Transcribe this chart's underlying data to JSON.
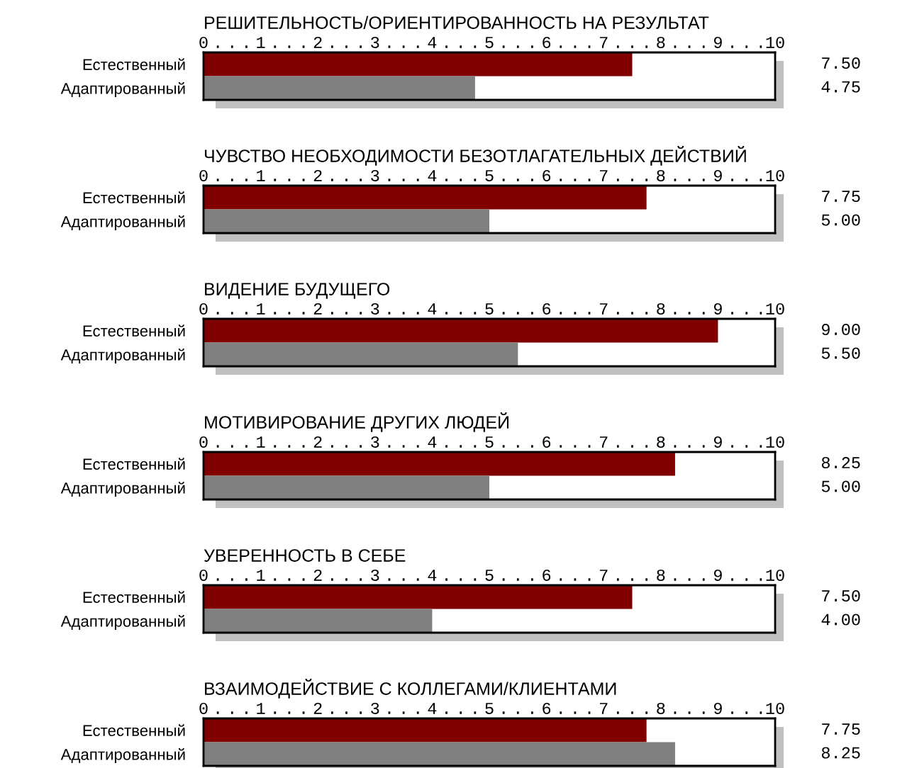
{
  "chart_data": [
    {
      "type": "bar",
      "orientation": "horizontal",
      "title": "РЕШИТЕЛЬНОСТЬ/ОРИЕНТИРОВАННОСТЬ НА РЕЗУЛЬТАТ",
      "categories": [
        "Естественный",
        "Адаптированный"
      ],
      "values": [
        7.5,
        4.75
      ],
      "colors": [
        "#800000",
        "#808080"
      ],
      "value_labels": [
        "7.50",
        "4.75"
      ],
      "xlim": [
        0,
        10
      ],
      "xticks": [
        0,
        {
          "value": 0.25,
          "label": "."
        },
        {
          "value": 0.5,
          "label": "."
        },
        {
          "value": 0.75,
          "label": "."
        },
        1,
        {
          "value": 1.25,
          "label": "."
        },
        {
          "value": 1.5,
          "label": "."
        },
        {
          "value": 1.75,
          "label": "."
        },
        2,
        {
          "value": 2.25,
          "label": "."
        },
        {
          "value": 2.5,
          "label": "."
        },
        {
          "value": 2.75,
          "label": "."
        },
        3,
        {
          "value": 3.25,
          "label": "."
        },
        {
          "value": 3.5,
          "label": "."
        },
        {
          "value": 3.75,
          "label": "."
        },
        4,
        {
          "value": 4.25,
          "label": "."
        },
        {
          "value": 4.5,
          "label": "."
        },
        {
          "value": 4.75,
          "label": "."
        },
        5,
        {
          "value": 5.25,
          "label": "."
        },
        {
          "value": 5.5,
          "label": "."
        },
        {
          "value": 5.75,
          "label": "."
        },
        6,
        {
          "value": 6.25,
          "label": "."
        },
        {
          "value": 6.5,
          "label": "."
        },
        {
          "value": 6.75,
          "label": "."
        },
        7,
        {
          "value": 7.25,
          "label": "."
        },
        {
          "value": 7.5,
          "label": "."
        },
        {
          "value": 7.75,
          "label": "."
        },
        8,
        {
          "value": 8.25,
          "label": "."
        },
        {
          "value": 8.5,
          "label": "."
        },
        {
          "value": 8.75,
          "label": "."
        },
        9,
        {
          "value": 9.25,
          "label": "."
        },
        {
          "value": 9.5,
          "label": "."
        },
        {
          "value": 9.75,
          "label": "."
        },
        10
      ]
    },
    {
      "type": "bar",
      "orientation": "horizontal",
      "title": "ЧУВСТВО НЕОБХОДИМОСТИ БЕЗОТЛАГАТЕЛЬНЫХ ДЕЙСТВИЙ",
      "categories": [
        "Естественный",
        "Адаптированный"
      ],
      "values": [
        7.75,
        5.0
      ],
      "colors": [
        "#800000",
        "#808080"
      ],
      "value_labels": [
        "7.75",
        "5.00"
      ],
      "xlim": [
        0,
        10
      ],
      "xticks": [
        0,
        {
          "value": 0.25,
          "label": "."
        },
        {
          "value": 0.5,
          "label": "."
        },
        {
          "value": 0.75,
          "label": "."
        },
        1,
        {
          "value": 1.25,
          "label": "."
        },
        {
          "value": 1.5,
          "label": "."
        },
        {
          "value": 1.75,
          "label": "."
        },
        2,
        {
          "value": 2.25,
          "label": "."
        },
        {
          "value": 2.5,
          "label": "."
        },
        {
          "value": 2.75,
          "label": "."
        },
        3,
        {
          "value": 3.25,
          "label": "."
        },
        {
          "value": 3.5,
          "label": "."
        },
        {
          "value": 3.75,
          "label": "."
        },
        4,
        {
          "value": 4.25,
          "label": "."
        },
        {
          "value": 4.5,
          "label": "."
        },
        {
          "value": 4.75,
          "label": "."
        },
        5,
        {
          "value": 5.25,
          "label": "."
        },
        {
          "value": 5.5,
          "label": "."
        },
        {
          "value": 5.75,
          "label": "."
        },
        6,
        {
          "value": 6.25,
          "label": "."
        },
        {
          "value": 6.5,
          "label": "."
        },
        {
          "value": 6.75,
          "label": "."
        },
        7,
        {
          "value": 7.25,
          "label": "."
        },
        {
          "value": 7.5,
          "label": "."
        },
        {
          "value": 7.75,
          "label": "."
        },
        8,
        {
          "value": 8.25,
          "label": "."
        },
        {
          "value": 8.5,
          "label": "."
        },
        {
          "value": 8.75,
          "label": "."
        },
        9,
        {
          "value": 9.25,
          "label": "."
        },
        {
          "value": 9.5,
          "label": "."
        },
        {
          "value": 9.75,
          "label": "."
        },
        10
      ]
    },
    {
      "type": "bar",
      "orientation": "horizontal",
      "title": "ВИДЕНИЕ БУДУЩЕГО",
      "categories": [
        "Естественный",
        "Адаптированный"
      ],
      "values": [
        9.0,
        5.5
      ],
      "colors": [
        "#800000",
        "#808080"
      ],
      "value_labels": [
        "9.00",
        "5.50"
      ],
      "xlim": [
        0,
        10
      ],
      "xticks": [
        0,
        {
          "value": 0.25,
          "label": "."
        },
        {
          "value": 0.5,
          "label": "."
        },
        {
          "value": 0.75,
          "label": "."
        },
        1,
        {
          "value": 1.25,
          "label": "."
        },
        {
          "value": 1.5,
          "label": "."
        },
        {
          "value": 1.75,
          "label": "."
        },
        2,
        {
          "value": 2.25,
          "label": "."
        },
        {
          "value": 2.5,
          "label": "."
        },
        {
          "value": 2.75,
          "label": "."
        },
        3,
        {
          "value": 3.25,
          "label": "."
        },
        {
          "value": 3.5,
          "label": "."
        },
        {
          "value": 3.75,
          "label": "."
        },
        4,
        {
          "value": 4.25,
          "label": "."
        },
        {
          "value": 4.5,
          "label": "."
        },
        {
          "value": 4.75,
          "label": "."
        },
        5,
        {
          "value": 5.25,
          "label": "."
        },
        {
          "value": 5.5,
          "label": "."
        },
        {
          "value": 5.75,
          "label": "."
        },
        6,
        {
          "value": 6.25,
          "label": "."
        },
        {
          "value": 6.5,
          "label": "."
        },
        {
          "value": 6.75,
          "label": "."
        },
        7,
        {
          "value": 7.25,
          "label": "."
        },
        {
          "value": 7.5,
          "label": "."
        },
        {
          "value": 7.75,
          "label": "."
        },
        8,
        {
          "value": 8.25,
          "label": "."
        },
        {
          "value": 8.5,
          "label": "."
        },
        {
          "value": 8.75,
          "label": "."
        },
        9,
        {
          "value": 9.25,
          "label": "."
        },
        {
          "value": 9.5,
          "label": "."
        },
        {
          "value": 9.75,
          "label": "."
        },
        10
      ]
    },
    {
      "type": "bar",
      "orientation": "horizontal",
      "title": "МОТИВИРОВАНИЕ ДРУГИХ ЛЮДЕЙ",
      "categories": [
        "Естественный",
        "Адаптированный"
      ],
      "values": [
        8.25,
        5.0
      ],
      "colors": [
        "#800000",
        "#808080"
      ],
      "value_labels": [
        "8.25",
        "5.00"
      ],
      "xlim": [
        0,
        10
      ],
      "xticks": [
        0,
        {
          "value": 0.25,
          "label": "."
        },
        {
          "value": 0.5,
          "label": "."
        },
        {
          "value": 0.75,
          "label": "."
        },
        1,
        {
          "value": 1.25,
          "label": "."
        },
        {
          "value": 1.5,
          "label": "."
        },
        {
          "value": 1.75,
          "label": "."
        },
        2,
        {
          "value": 2.25,
          "label": "."
        },
        {
          "value": 2.5,
          "label": "."
        },
        {
          "value": 2.75,
          "label": "."
        },
        3,
        {
          "value": 3.25,
          "label": "."
        },
        {
          "value": 3.5,
          "label": "."
        },
        {
          "value": 3.75,
          "label": "."
        },
        4,
        {
          "value": 4.25,
          "label": "."
        },
        {
          "value": 4.5,
          "label": "."
        },
        {
          "value": 4.75,
          "label": "."
        },
        5,
        {
          "value": 5.25,
          "label": "."
        },
        {
          "value": 5.5,
          "label": "."
        },
        {
          "value": 5.75,
          "label": "."
        },
        6,
        {
          "value": 6.25,
          "label": "."
        },
        {
          "value": 6.5,
          "label": "."
        },
        {
          "value": 6.75,
          "label": "."
        },
        7,
        {
          "value": 7.25,
          "label": "."
        },
        {
          "value": 7.5,
          "label": "."
        },
        {
          "value": 7.75,
          "label": "."
        },
        8,
        {
          "value": 8.25,
          "label": "."
        },
        {
          "value": 8.5,
          "label": "."
        },
        {
          "value": 8.75,
          "label": "."
        },
        9,
        {
          "value": 9.25,
          "label": "."
        },
        {
          "value": 9.5,
          "label": "."
        },
        {
          "value": 9.75,
          "label": "."
        },
        10
      ]
    },
    {
      "type": "bar",
      "orientation": "horizontal",
      "title": "УВЕРЕННОСТЬ В СЕБЕ",
      "categories": [
        "Естественный",
        "Адаптированный"
      ],
      "values": [
        7.5,
        4.0
      ],
      "colors": [
        "#800000",
        "#808080"
      ],
      "value_labels": [
        "7.50",
        "4.00"
      ],
      "xlim": [
        0,
        10
      ],
      "xticks": [
        0,
        {
          "value": 0.25,
          "label": "."
        },
        {
          "value": 0.5,
          "label": "."
        },
        {
          "value": 0.75,
          "label": "."
        },
        1,
        {
          "value": 1.25,
          "label": "."
        },
        {
          "value": 1.5,
          "label": "."
        },
        {
          "value": 1.75,
          "label": "."
        },
        2,
        {
          "value": 2.25,
          "label": "."
        },
        {
          "value": 2.5,
          "label": "."
        },
        {
          "value": 2.75,
          "label": "."
        },
        3,
        {
          "value": 3.25,
          "label": "."
        },
        {
          "value": 3.5,
          "label": "."
        },
        {
          "value": 3.75,
          "label": "."
        },
        4,
        {
          "value": 4.25,
          "label": "."
        },
        {
          "value": 4.5,
          "label": "."
        },
        {
          "value": 4.75,
          "label": "."
        },
        5,
        {
          "value": 5.25,
          "label": "."
        },
        {
          "value": 5.5,
          "label": "."
        },
        {
          "value": 5.75,
          "label": "."
        },
        6,
        {
          "value": 6.25,
          "label": "."
        },
        {
          "value": 6.5,
          "label": "."
        },
        {
          "value": 6.75,
          "label": "."
        },
        7,
        {
          "value": 7.25,
          "label": "."
        },
        {
          "value": 7.5,
          "label": "."
        },
        {
          "value": 7.75,
          "label": "."
        },
        8,
        {
          "value": 8.25,
          "label": "."
        },
        {
          "value": 8.5,
          "label": "."
        },
        {
          "value": 8.75,
          "label": "."
        },
        9,
        {
          "value": 9.25,
          "label": "."
        },
        {
          "value": 9.5,
          "label": "."
        },
        {
          "value": 9.75,
          "label": "."
        },
        10
      ]
    },
    {
      "type": "bar",
      "orientation": "horizontal",
      "title": "ВЗАИМОДЕЙСТВИЕ С КОЛЛЕГАМИ/КЛИЕНТАМИ",
      "categories": [
        "Естественный",
        "Адаптированный"
      ],
      "values": [
        7.75,
        8.25
      ],
      "colors": [
        "#800000",
        "#808080"
      ],
      "value_labels": [
        "7.75",
        "8.25"
      ],
      "xlim": [
        0,
        10
      ],
      "xticks": [
        0,
        {
          "value": 0.25,
          "label": "."
        },
        {
          "value": 0.5,
          "label": "."
        },
        {
          "value": 0.75,
          "label": "."
        },
        1,
        {
          "value": 1.25,
          "label": "."
        },
        {
          "value": 1.5,
          "label": "."
        },
        {
          "value": 1.75,
          "label": "."
        },
        2,
        {
          "value": 2.25,
          "label": "."
        },
        {
          "value": 2.5,
          "label": "."
        },
        {
          "value": 2.75,
          "label": "."
        },
        3,
        {
          "value": 3.25,
          "label": "."
        },
        {
          "value": 3.5,
          "label": "."
        },
        {
          "value": 3.75,
          "label": "."
        },
        4,
        {
          "value": 4.25,
          "label": "."
        },
        {
          "value": 4.5,
          "label": "."
        },
        {
          "value": 4.75,
          "label": "."
        },
        5,
        {
          "value": 5.25,
          "label": "."
        },
        {
          "value": 5.5,
          "label": "."
        },
        {
          "value": 5.75,
          "label": "."
        },
        6,
        {
          "value": 6.25,
          "label": "."
        },
        {
          "value": 6.5,
          "label": "."
        },
        {
          "value": 6.75,
          "label": "."
        },
        7,
        {
          "value": 7.25,
          "label": "."
        },
        {
          "value": 7.5,
          "label": "."
        },
        {
          "value": 7.75,
          "label": "."
        },
        8,
        {
          "value": 8.25,
          "label": "."
        },
        {
          "value": 8.5,
          "label": "."
        },
        {
          "value": 8.75,
          "label": "."
        },
        9,
        {
          "value": 9.25,
          "label": "."
        },
        {
          "value": 9.5,
          "label": "."
        },
        {
          "value": 9.75,
          "label": "."
        },
        10
      ]
    }
  ]
}
